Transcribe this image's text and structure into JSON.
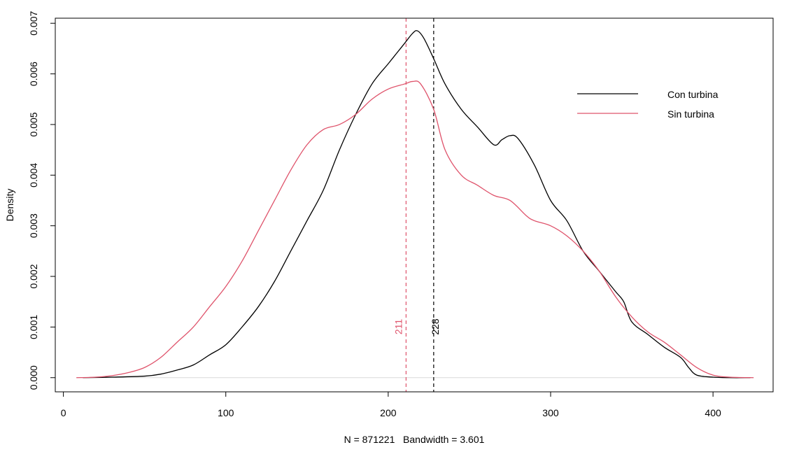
{
  "chart_data": {
    "type": "line",
    "title": "",
    "xlabel": "N = 871221   Bandwidth = 3.601",
    "ylabel": "Density",
    "xlim": [
      -5,
      437
    ],
    "ylim": [
      -0.00028,
      0.0071
    ],
    "x_ticks": [
      0,
      100,
      200,
      300,
      400
    ],
    "x_tick_labels": [
      "0",
      "100",
      "200",
      "300",
      "400"
    ],
    "y_ticks": [
      0,
      0.001,
      0.002,
      0.003,
      0.004,
      0.005,
      0.006,
      0.007
    ],
    "y_tick_labels": [
      "0.000",
      "0.001",
      "0.002",
      "0.003",
      "0.004",
      "0.005",
      "0.006",
      "0.007"
    ],
    "grid": false,
    "legend_position": "top-right",
    "series": [
      {
        "name": "Con turbina",
        "color": "#000000",
        "x": [
          12,
          30,
          50,
          60,
          70,
          80,
          90,
          100,
          110,
          120,
          130,
          140,
          150,
          160,
          170,
          180,
          190,
          200,
          205,
          210,
          215,
          218,
          222,
          228,
          235,
          245,
          255,
          265,
          270,
          275,
          280,
          290,
          300,
          310,
          320,
          330,
          340,
          345,
          350,
          360,
          370,
          380,
          385,
          390,
          400,
          410,
          423
        ],
        "y": [
          0,
          1e-05,
          3e-05,
          7e-05,
          0.00015,
          0.00025,
          0.00045,
          0.00065,
          0.001,
          0.0014,
          0.0019,
          0.0025,
          0.0031,
          0.0037,
          0.0045,
          0.0052,
          0.0058,
          0.0062,
          0.0064,
          0.0066,
          0.0068,
          0.00685,
          0.0067,
          0.0063,
          0.0058,
          0.0053,
          0.00495,
          0.0046,
          0.0047,
          0.00478,
          0.00472,
          0.0042,
          0.0035,
          0.0031,
          0.0025,
          0.0021,
          0.0017,
          0.0015,
          0.0011,
          0.00085,
          0.0006,
          0.0004,
          0.0002,
          5e-05,
          1e-05,
          0,
          0
        ]
      },
      {
        "name": "Sin turbina",
        "color": "#df536b",
        "x": [
          8,
          20,
          30,
          40,
          50,
          60,
          70,
          80,
          90,
          100,
          110,
          120,
          130,
          140,
          150,
          160,
          170,
          180,
          190,
          200,
          210,
          215,
          220,
          228,
          235,
          245,
          255,
          265,
          275,
          285,
          290,
          300,
          310,
          320,
          330,
          340,
          350,
          360,
          370,
          380,
          390,
          400,
          410,
          425
        ],
        "y": [
          0,
          1e-05,
          4e-05,
          0.0001,
          0.0002,
          0.0004,
          0.0007,
          0.001,
          0.0014,
          0.0018,
          0.0023,
          0.0029,
          0.0035,
          0.0041,
          0.0046,
          0.0049,
          0.005,
          0.0052,
          0.0055,
          0.0057,
          0.0058,
          0.00585,
          0.0058,
          0.0053,
          0.0045,
          0.004,
          0.0038,
          0.0036,
          0.0035,
          0.0032,
          0.0031,
          0.003,
          0.0028,
          0.0025,
          0.0021,
          0.0016,
          0.0012,
          0.0009,
          0.0007,
          0.00045,
          0.0002,
          5e-05,
          1e-05,
          0
        ]
      }
    ],
    "vlines": [
      {
        "x": 211,
        "label": "211",
        "color": "#df536b"
      },
      {
        "x": 228,
        "label": "228",
        "color": "#000000"
      }
    ],
    "hline_zero_color": "#d9d9d9"
  }
}
